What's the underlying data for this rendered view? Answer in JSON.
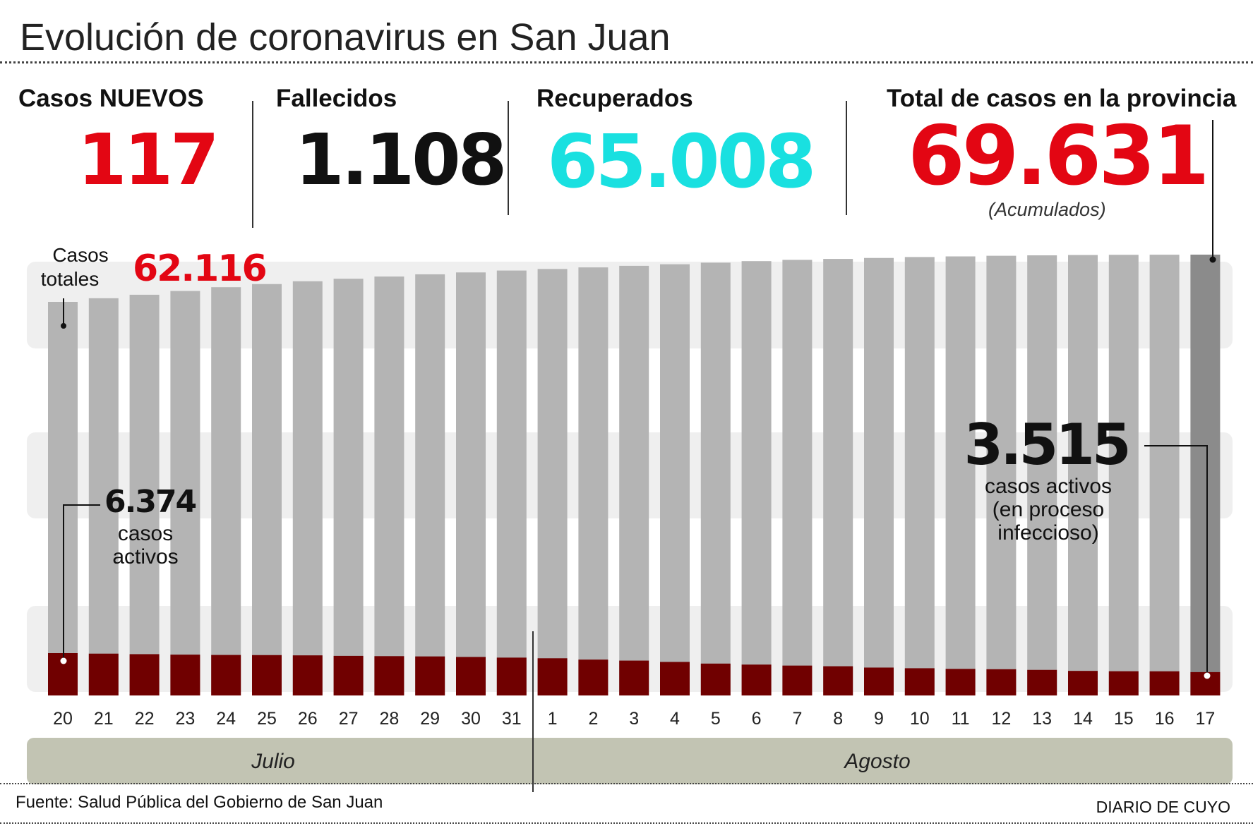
{
  "header": {
    "title": "Evolución de coronavirus en San Juan"
  },
  "stats": {
    "nuevos": {
      "label": "Casos NUEVOS",
      "value": "117",
      "color": "#e30613"
    },
    "fallecidos": {
      "label": "Fallecidos",
      "value": "1.108",
      "color": "#111111"
    },
    "recuperados": {
      "label": "Recuperados",
      "value": "65.008",
      "color": "#19e0e0"
    },
    "total": {
      "label": "Total de casos en la provincia",
      "value": "69.631",
      "color": "#e30613",
      "note": "(Acumulados)"
    }
  },
  "chart_data": {
    "type": "bar",
    "categories": [
      "20",
      "21",
      "22",
      "23",
      "24",
      "25",
      "26",
      "27",
      "28",
      "29",
      "30",
      "31",
      "1",
      "2",
      "3",
      "4",
      "5",
      "6",
      "7",
      "8",
      "9",
      "10",
      "11",
      "12",
      "13",
      "14",
      "15",
      "16",
      "17"
    ],
    "series": [
      {
        "name": "Casos totales",
        "values": [
          62116,
          62700,
          63250,
          63850,
          64450,
          64950,
          65400,
          65800,
          66150,
          66500,
          66800,
          67100,
          67350,
          67600,
          67850,
          68100,
          68350,
          68600,
          68800,
          68950,
          69100,
          69250,
          69350,
          69450,
          69520,
          69570,
          69600,
          69620,
          69631
        ],
        "color": "#b4b4b4",
        "last_color": "#8b8b8b"
      },
      {
        "name": "casos activos",
        "values": [
          6374,
          6300,
          6220,
          6150,
          6100,
          6080,
          6040,
          5960,
          5920,
          5880,
          5800,
          5700,
          5600,
          5400,
          5250,
          5050,
          4800,
          4650,
          4500,
          4400,
          4200,
          4100,
          4000,
          3950,
          3850,
          3700,
          3650,
          3640,
          3515
        ],
        "color": "#700000"
      }
    ],
    "months": [
      {
        "label": "Julio"
      },
      {
        "label": "Agosto"
      }
    ],
    "annotations": {
      "casos_totales_label": "Casos totales",
      "first_total": "62.116",
      "first_active": "6.374",
      "first_active_label": "casos activos",
      "last_active": "3.515",
      "last_active_label": "casos activos (en proceso infeccioso)"
    },
    "band_color": "#efefef",
    "month_band_color": "#c2c4b3"
  },
  "footer": {
    "source": "Fuente: Salud Pública del Gobierno de San Juan",
    "brand": "DIARIO DE CUYO"
  }
}
